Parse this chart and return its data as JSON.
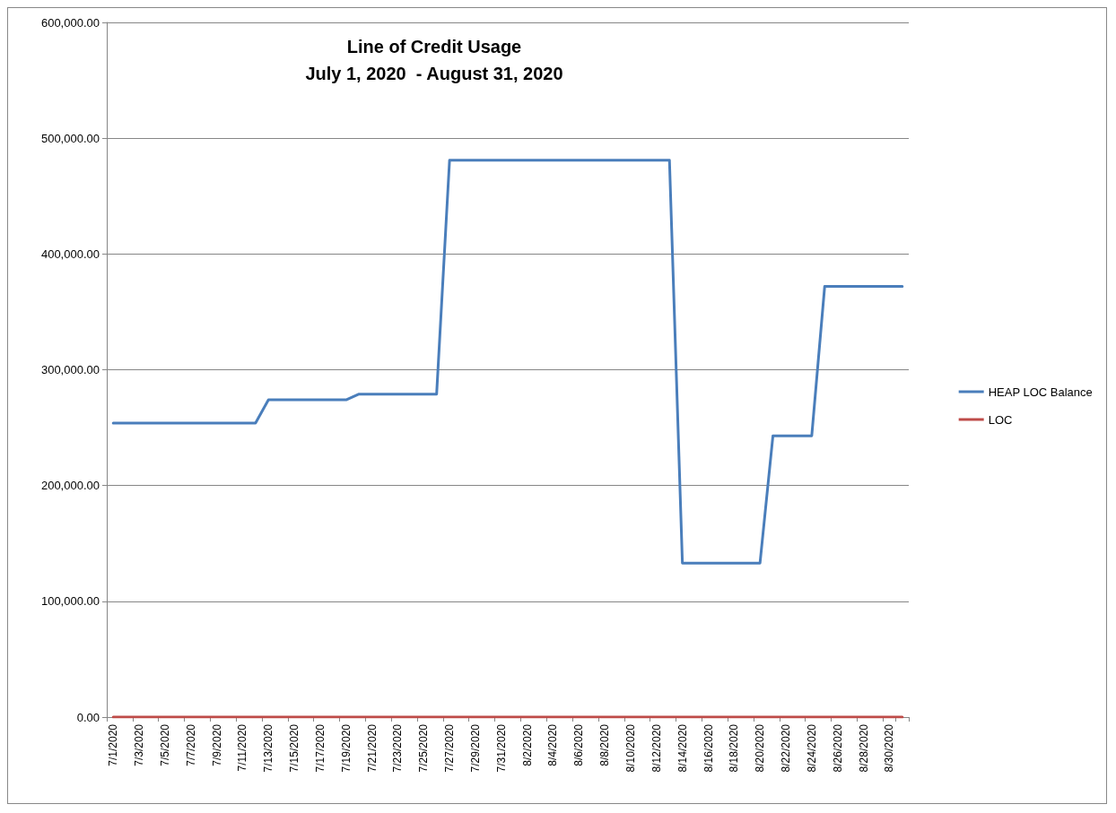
{
  "chart_data": {
    "type": "line",
    "title": "Line of Credit Usage",
    "subtitle": "July 1, 2020  - August 31, 2020",
    "categories": [
      "7/1/2020",
      null,
      "7/3/2020",
      null,
      "7/5/2020",
      null,
      "7/7/2020",
      null,
      "7/9/2020",
      null,
      "7/11/2020",
      null,
      "7/13/2020",
      null,
      "7/15/2020",
      null,
      "7/17/2020",
      null,
      "7/19/2020",
      null,
      "7/21/2020",
      null,
      "7/23/2020",
      null,
      "7/25/2020",
      null,
      "7/27/2020",
      null,
      "7/29/2020",
      null,
      "7/31/2020",
      null,
      "8/2/2020",
      null,
      "8/4/2020",
      null,
      "8/6/2020",
      null,
      "8/8/2020",
      null,
      "8/10/2020",
      null,
      "8/12/2020",
      null,
      "8/14/2020",
      null,
      "8/16/2020",
      null,
      "8/18/2020",
      null,
      "8/20/2020",
      null,
      "8/22/2020",
      null,
      "8/24/2020",
      null,
      "8/26/2020",
      null,
      "8/28/2020",
      null,
      "8/30/2020",
      null
    ],
    "series": [
      {
        "name": "HEAP LOC Balance",
        "color": "#4a7ebb",
        "values": [
          254000,
          254000,
          254000,
          254000,
          254000,
          254000,
          254000,
          254000,
          254000,
          254000,
          254000,
          254000,
          274000,
          274000,
          274000,
          274000,
          274000,
          274000,
          274000,
          279000,
          279000,
          279000,
          279000,
          279000,
          279000,
          279000,
          481000,
          481000,
          481000,
          481000,
          481000,
          481000,
          481000,
          481000,
          481000,
          481000,
          481000,
          481000,
          481000,
          481000,
          481000,
          481000,
          481000,
          481000,
          133000,
          133000,
          133000,
          133000,
          133000,
          133000,
          133000,
          243000,
          243000,
          243000,
          243000,
          372000,
          372000,
          372000,
          372000,
          372000,
          372000,
          372000
        ]
      },
      {
        "name": "LOC",
        "color": "#be4b48",
        "values": [
          0,
          0,
          0,
          0,
          0,
          0,
          0,
          0,
          0,
          0,
          0,
          0,
          0,
          0,
          0,
          0,
          0,
          0,
          0,
          0,
          0,
          0,
          0,
          0,
          0,
          0,
          0,
          0,
          0,
          0,
          0,
          0,
          0,
          0,
          0,
          0,
          0,
          0,
          0,
          0,
          0,
          0,
          0,
          0,
          0,
          0,
          0,
          0,
          0,
          0,
          0,
          0,
          0,
          0,
          0,
          0,
          0,
          0,
          0,
          0,
          0,
          0
        ]
      }
    ],
    "ylim": [
      0,
      600000
    ],
    "yticks": [
      {
        "value": 0,
        "label": "0.00"
      },
      {
        "value": 100000,
        "label": "100,000.00"
      },
      {
        "value": 200000,
        "label": "200,000.00"
      },
      {
        "value": 300000,
        "label": "300,000.00"
      },
      {
        "value": 400000,
        "label": "400,000.00"
      },
      {
        "value": 500000,
        "label": "500,000.00"
      },
      {
        "value": 600000,
        "label": "600,000.00"
      }
    ],
    "grid": "y",
    "legend": "right",
    "marker": "none",
    "line_style": "solid"
  }
}
